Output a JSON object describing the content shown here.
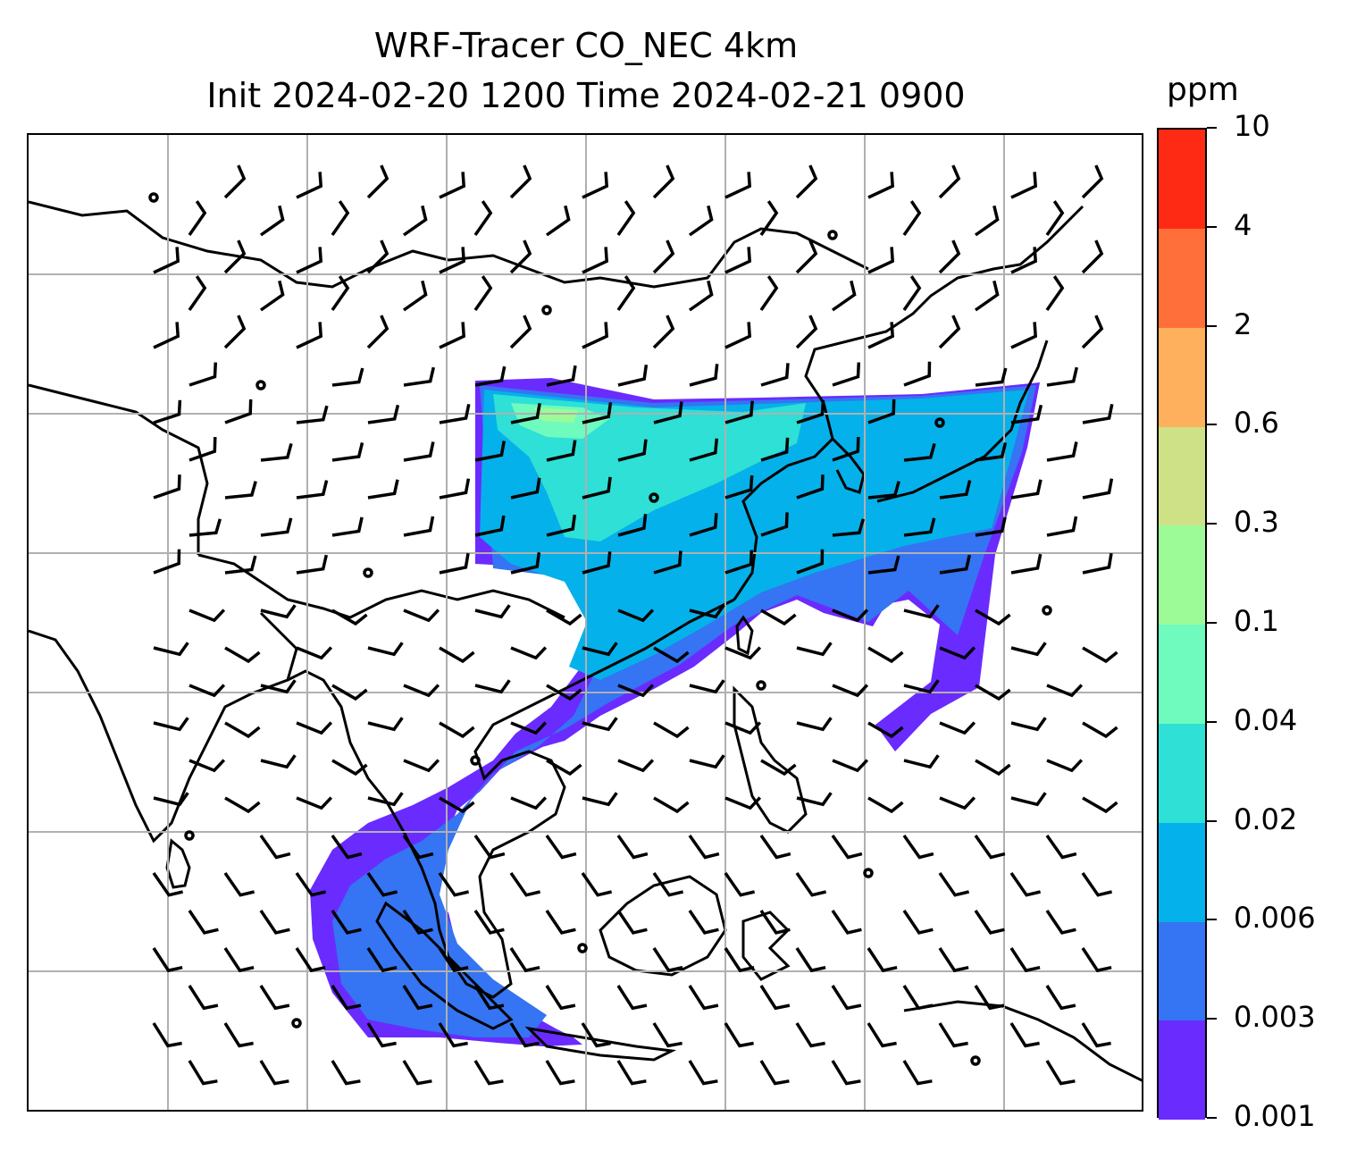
{
  "title": {
    "line1": "WRF-Tracer CO_NEC 4km",
    "line2": "Init 2024-02-20 1200 Time 2024-02-21 0900"
  },
  "colorbar": {
    "unit": "ppm",
    "levels": [
      "0.001",
      "0.003",
      "0.006",
      "0.02",
      "0.04",
      "0.1",
      "0.3",
      "0.6",
      "2",
      "4",
      "10"
    ],
    "colors": [
      "#6a2bff",
      "#3574f2",
      "#05b1ea",
      "#2ee0d5",
      "#6efbbd",
      "#9dfb97",
      "#cee186",
      "#ffb05c",
      "#ff6f3a",
      "#ff2a14"
    ]
  },
  "map": {
    "gridlines": "on",
    "grid_color": "#b0b0b0",
    "coastline_color": "#000000",
    "barb_color": "#000000"
  }
}
